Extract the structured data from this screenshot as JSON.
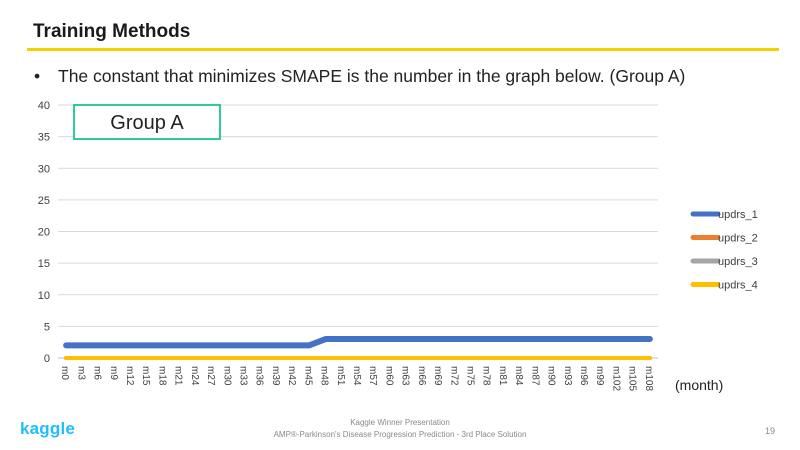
{
  "slide": {
    "title": "Training Methods",
    "bullet": "The constant that minimizes SMAPE is the number in the graph below. (Group A)",
    "bullet_symbol": "•",
    "accent_color": "#f5d000"
  },
  "chart_data": {
    "type": "line",
    "title": "",
    "xlabel": "(month)",
    "ylabel": "",
    "ylim": [
      0,
      40
    ],
    "yticks": [
      0,
      5,
      10,
      15,
      20,
      25,
      30,
      35,
      40
    ],
    "grid": true,
    "legend_position": "right",
    "annotation": "Group A",
    "categories": [
      "m0",
      "m3",
      "m6",
      "m9",
      "m12",
      "m15",
      "m18",
      "m21",
      "m24",
      "m27",
      "m30",
      "m33",
      "m36",
      "m39",
      "m42",
      "m45",
      "m48",
      "m51",
      "m54",
      "m57",
      "m60",
      "m63",
      "m66",
      "m69",
      "m72",
      "m75",
      "m78",
      "m81",
      "m84",
      "m87",
      "m90",
      "m93",
      "m96",
      "m99",
      "m102",
      "m105",
      "m108"
    ],
    "series": [
      {
        "name": "updrs_1",
        "color": "#4472c4",
        "values": [
          2,
          2,
          2,
          2,
          2,
          2,
          2,
          2,
          2,
          2,
          2,
          2,
          2,
          2,
          2,
          2,
          3,
          3,
          3,
          3,
          3,
          3,
          3,
          3,
          3,
          3,
          3,
          3,
          3,
          3,
          3,
          3,
          3,
          3,
          3,
          3,
          3
        ]
      },
      {
        "name": "updrs_2",
        "color": "#ed7d31",
        "values": [
          0,
          0,
          0,
          0,
          0,
          0,
          0,
          0,
          0,
          0,
          0,
          0,
          0,
          0,
          0,
          0,
          0,
          0,
          0,
          0,
          0,
          0,
          0,
          0,
          0,
          0,
          0,
          0,
          0,
          0,
          0,
          0,
          0,
          0,
          0,
          0,
          0
        ]
      },
      {
        "name": "updrs_3",
        "color": "#a5a5a5",
        "values": [
          0,
          0,
          0,
          0,
          0,
          0,
          0,
          0,
          0,
          0,
          0,
          0,
          0,
          0,
          0,
          0,
          0,
          0,
          0,
          0,
          0,
          0,
          0,
          0,
          0,
          0,
          0,
          0,
          0,
          0,
          0,
          0,
          0,
          0,
          0,
          0,
          0
        ]
      },
      {
        "name": "updrs_4",
        "color": "#ffc000",
        "values": [
          0,
          0,
          0,
          0,
          0,
          0,
          0,
          0,
          0,
          0,
          0,
          0,
          0,
          0,
          0,
          0,
          0,
          0,
          0,
          0,
          0,
          0,
          0,
          0,
          0,
          0,
          0,
          0,
          0,
          0,
          0,
          0,
          0,
          0,
          0,
          0,
          0
        ]
      }
    ],
    "annotation_box_color": "#2ecc8f"
  },
  "footer": {
    "logo": "kaggle",
    "line1": "Kaggle Winner Presentation",
    "line2": "AMP®-Parkinson's  Disease Progression Prediction  - 3rd Place Solution",
    "page": "19",
    "logo_color": "#20beff"
  }
}
